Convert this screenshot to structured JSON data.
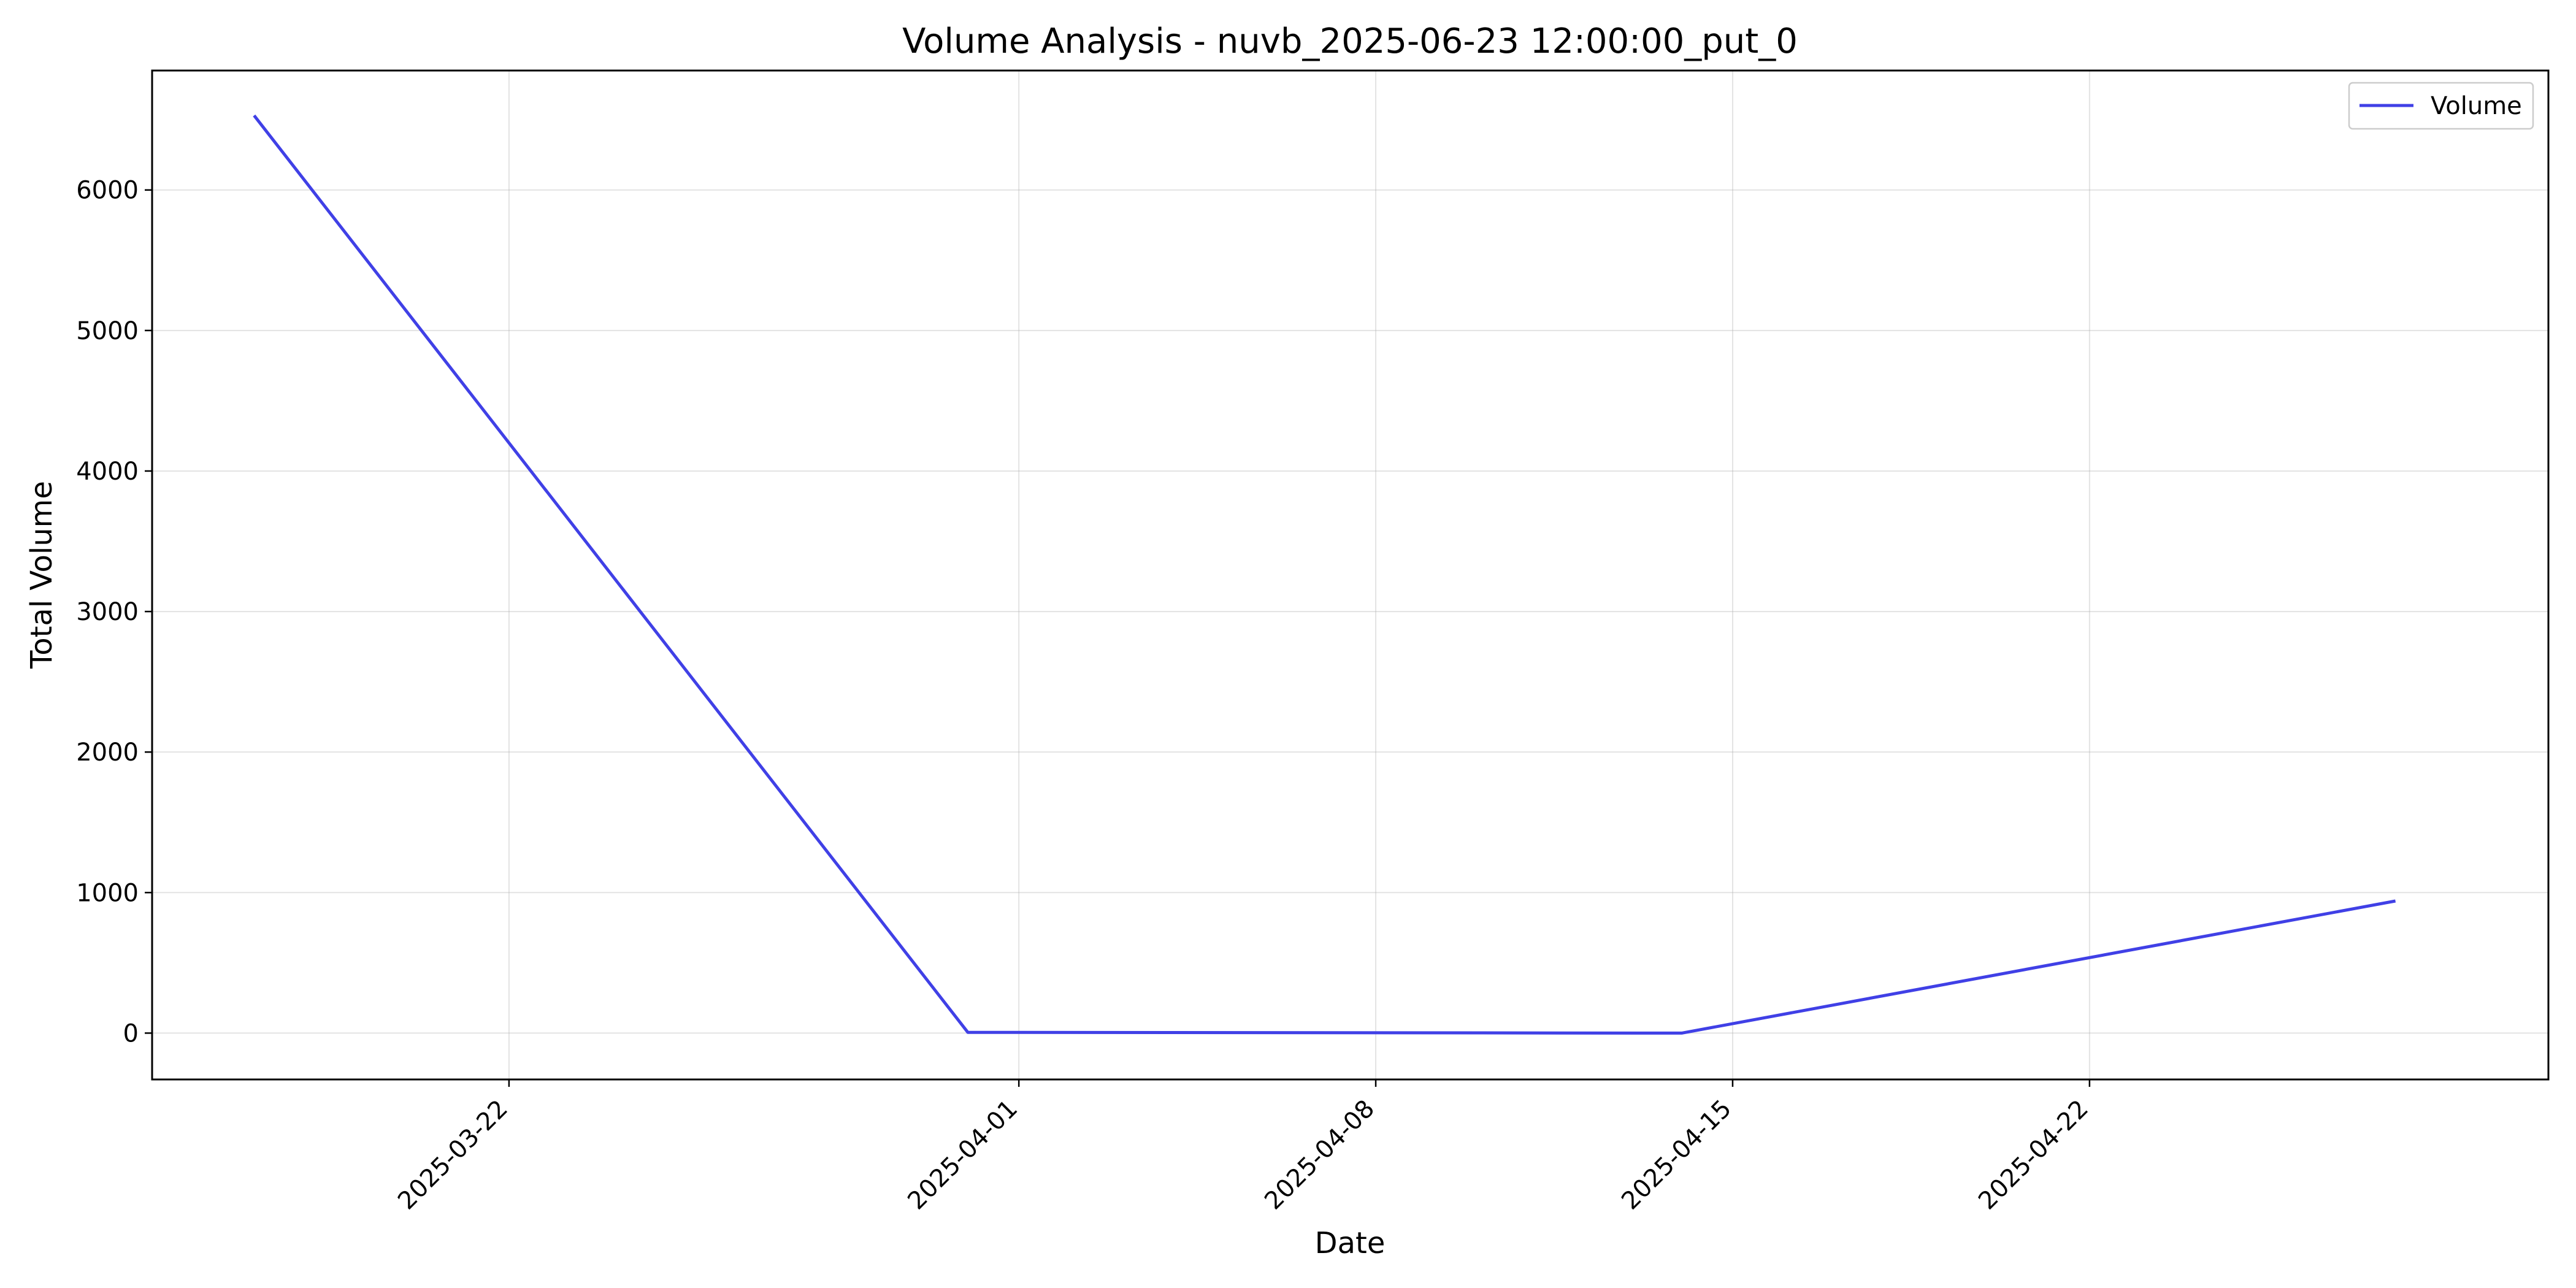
{
  "chart_data": {
    "type": "line",
    "title": "Volume Analysis - nuvb_2025-06-23 12:00:00_put_0",
    "xlabel": "Date",
    "ylabel": "Total Volume",
    "x_type": "date",
    "xlim": [
      "2025-03-15",
      "2025-05-01"
    ],
    "ylim": [
      -330,
      6850
    ],
    "x_ticks": [
      "2025-03-22",
      "2025-04-01",
      "2025-04-08",
      "2025-04-15",
      "2025-04-22"
    ],
    "y_ticks": [
      0,
      1000,
      2000,
      3000,
      4000,
      5000,
      6000
    ],
    "grid": true,
    "legend": {
      "position": "top-right",
      "entries": [
        "Volume"
      ]
    },
    "series": [
      {
        "name": "Volume",
        "color": "#4040e6",
        "x": [
          "2025-03-17",
          "2025-03-31",
          "2025-04-14",
          "2025-04-28"
        ],
        "y": [
          6530,
          5,
          0,
          940
        ]
      }
    ]
  }
}
